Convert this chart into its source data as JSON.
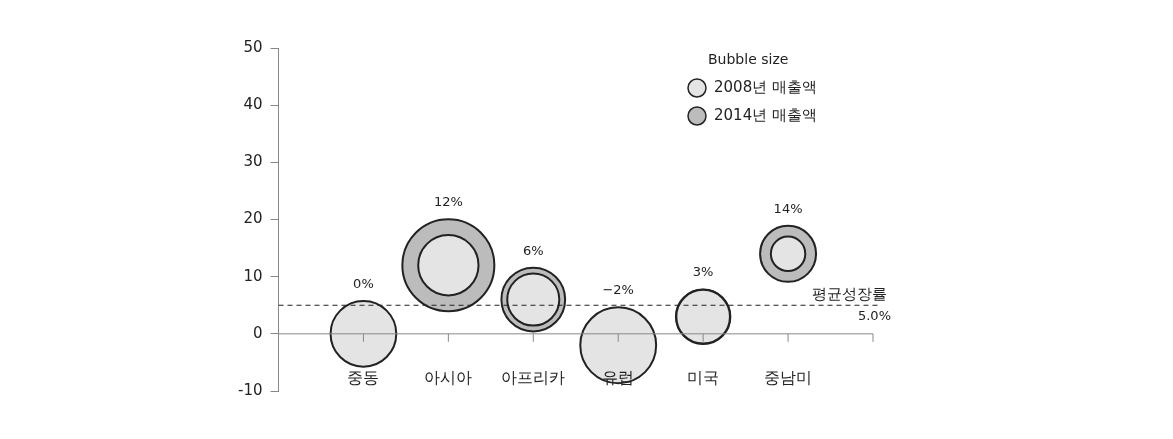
{
  "chart_data": {
    "type": "bubble",
    "legend_title": "Bubble size",
    "categories": [
      "중동",
      "아시아",
      "아프리카",
      "유럽",
      "미국",
      "중남미"
    ],
    "ylim": [
      -10,
      50
    ],
    "yticks": [
      -10,
      0,
      10,
      20,
      30,
      40,
      50
    ],
    "grid": false,
    "legend": "top right",
    "relative": false,
    "series": [
      {
        "name": "2008년 매출액",
        "color": "#e4e4e4",
        "values": [
          0,
          12,
          6,
          -2,
          3,
          14
        ],
        "sizes": [
          0.51,
          0.43,
          0.32,
          0.68,
          0.34,
          0.14
        ],
        "value_labels": [
          "0%",
          null,
          null,
          "−2%",
          null,
          null
        ]
      },
      {
        "name": "2014년 매출액",
        "color": "#bcbcbc",
        "values": [
          null,
          12,
          6,
          null,
          3,
          14
        ],
        "sizes": [
          null,
          1,
          0.48,
          null,
          0.35,
          0.37
        ],
        "value_labels": [
          null,
          "12%",
          "6%",
          null,
          "3%",
          "14%"
        ]
      }
    ],
    "ref_lines": [
      {
        "axis": "y",
        "value": 5,
        "label": "평균성장률 5.0%",
        "line_style": "dashed",
        "color": "#222222"
      }
    ]
  }
}
